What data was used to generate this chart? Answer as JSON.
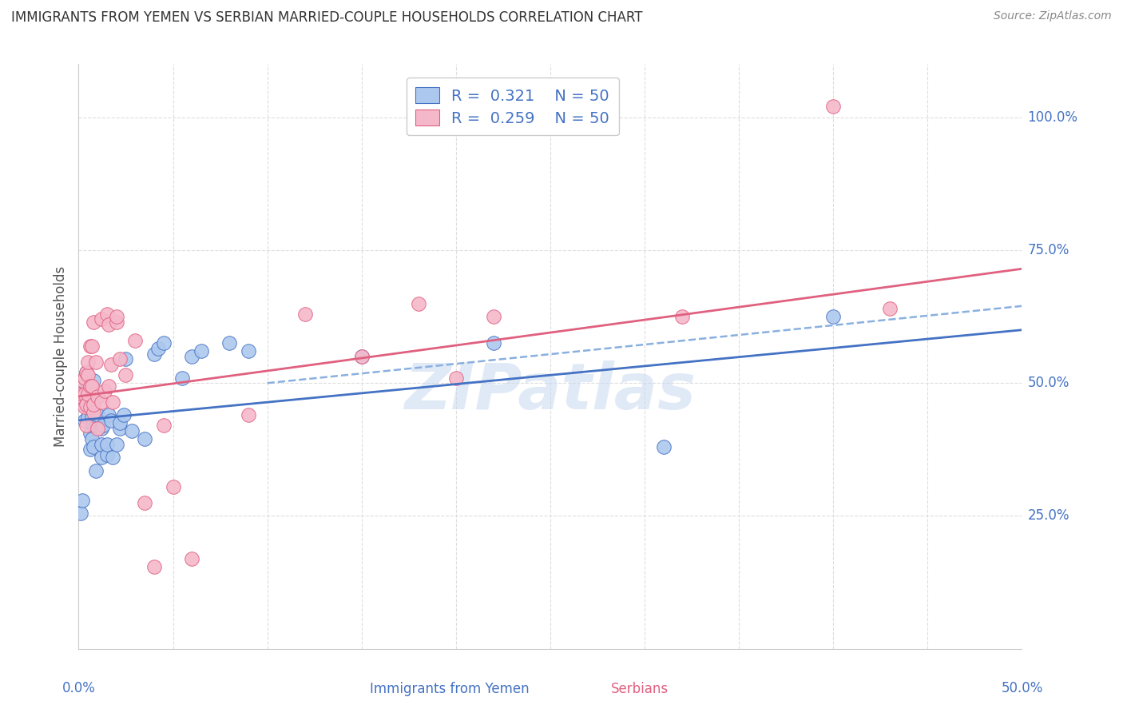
{
  "title": "IMMIGRANTS FROM YEMEN VS SERBIAN MARRIED-COUPLE HOUSEHOLDS CORRELATION CHART",
  "source": "Source: ZipAtlas.com",
  "ylabel": "Married-couple Households",
  "xlabel_blue": "Immigrants from Yemen",
  "xlabel_pink": "Serbians",
  "xlim": [
    0.0,
    0.5
  ],
  "ylim": [
    0.0,
    1.1
  ],
  "xtick_labels_corners": [
    "0.0%",
    "50.0%"
  ],
  "xtick_vals_corners": [
    0.0,
    0.5
  ],
  "ytick_labels": [
    "25.0%",
    "50.0%",
    "75.0%",
    "100.0%"
  ],
  "ytick_vals": [
    0.25,
    0.5,
    0.75,
    1.0
  ],
  "legend_r_blue": "R =  0.321",
  "legend_n_blue": "N = 50",
  "legend_r_pink": "R =  0.259",
  "legend_n_pink": "N = 50",
  "blue_color": "#adc8ee",
  "pink_color": "#f5b8ca",
  "trendline_blue": "#4472c4",
  "trendline_pink": "#e06080",
  "trendline_gray_dashed": "#8ab0e0",
  "watermark": "ZIPatlas",
  "blue_scatter": [
    [
      0.001,
      0.255
    ],
    [
      0.002,
      0.28
    ],
    [
      0.003,
      0.43
    ],
    [
      0.003,
      0.47
    ],
    [
      0.004,
      0.495
    ],
    [
      0.004,
      0.505
    ],
    [
      0.004,
      0.52
    ],
    [
      0.005,
      0.435
    ],
    [
      0.005,
      0.455
    ],
    [
      0.005,
      0.465
    ],
    [
      0.006,
      0.375
    ],
    [
      0.006,
      0.405
    ],
    [
      0.006,
      0.46
    ],
    [
      0.007,
      0.395
    ],
    [
      0.007,
      0.435
    ],
    [
      0.008,
      0.38
    ],
    [
      0.008,
      0.42
    ],
    [
      0.008,
      0.505
    ],
    [
      0.009,
      0.335
    ],
    [
      0.009,
      0.42
    ],
    [
      0.01,
      0.43
    ],
    [
      0.01,
      0.44
    ],
    [
      0.012,
      0.36
    ],
    [
      0.012,
      0.385
    ],
    [
      0.012,
      0.415
    ],
    [
      0.013,
      0.42
    ],
    [
      0.015,
      0.365
    ],
    [
      0.015,
      0.385
    ],
    [
      0.016,
      0.44
    ],
    [
      0.017,
      0.43
    ],
    [
      0.018,
      0.36
    ],
    [
      0.02,
      0.385
    ],
    [
      0.022,
      0.415
    ],
    [
      0.022,
      0.425
    ],
    [
      0.024,
      0.44
    ],
    [
      0.025,
      0.545
    ],
    [
      0.028,
      0.41
    ],
    [
      0.035,
      0.395
    ],
    [
      0.04,
      0.555
    ],
    [
      0.042,
      0.565
    ],
    [
      0.045,
      0.575
    ],
    [
      0.055,
      0.51
    ],
    [
      0.06,
      0.55
    ],
    [
      0.065,
      0.56
    ],
    [
      0.08,
      0.575
    ],
    [
      0.09,
      0.56
    ],
    [
      0.15,
      0.55
    ],
    [
      0.22,
      0.575
    ],
    [
      0.31,
      0.38
    ],
    [
      0.4,
      0.625
    ]
  ],
  "pink_scatter": [
    [
      0.001,
      0.475
    ],
    [
      0.002,
      0.48
    ],
    [
      0.002,
      0.505
    ],
    [
      0.003,
      0.455
    ],
    [
      0.003,
      0.48
    ],
    [
      0.003,
      0.51
    ],
    [
      0.004,
      0.42
    ],
    [
      0.004,
      0.46
    ],
    [
      0.004,
      0.52
    ],
    [
      0.005,
      0.48
    ],
    [
      0.005,
      0.515
    ],
    [
      0.005,
      0.54
    ],
    [
      0.006,
      0.455
    ],
    [
      0.006,
      0.495
    ],
    [
      0.006,
      0.57
    ],
    [
      0.007,
      0.495
    ],
    [
      0.007,
      0.57
    ],
    [
      0.008,
      0.445
    ],
    [
      0.008,
      0.46
    ],
    [
      0.008,
      0.615
    ],
    [
      0.009,
      0.54
    ],
    [
      0.01,
      0.415
    ],
    [
      0.01,
      0.475
    ],
    [
      0.012,
      0.465
    ],
    [
      0.012,
      0.62
    ],
    [
      0.014,
      0.485
    ],
    [
      0.015,
      0.63
    ],
    [
      0.016,
      0.495
    ],
    [
      0.016,
      0.61
    ],
    [
      0.017,
      0.535
    ],
    [
      0.018,
      0.465
    ],
    [
      0.02,
      0.615
    ],
    [
      0.02,
      0.625
    ],
    [
      0.022,
      0.545
    ],
    [
      0.025,
      0.515
    ],
    [
      0.03,
      0.58
    ],
    [
      0.035,
      0.275
    ],
    [
      0.04,
      0.155
    ],
    [
      0.045,
      0.42
    ],
    [
      0.05,
      0.305
    ],
    [
      0.06,
      0.17
    ],
    [
      0.09,
      0.44
    ],
    [
      0.12,
      0.63
    ],
    [
      0.15,
      0.55
    ],
    [
      0.18,
      0.65
    ],
    [
      0.2,
      0.51
    ],
    [
      0.22,
      0.625
    ],
    [
      0.32,
      0.625
    ],
    [
      0.4,
      1.02
    ],
    [
      0.43,
      0.64
    ]
  ],
  "blue_trend_x": [
    0.0,
    0.5
  ],
  "blue_trend_y": [
    0.43,
    0.6
  ],
  "pink_trend_x": [
    0.0,
    0.5
  ],
  "pink_trend_y": [
    0.475,
    0.715
  ],
  "gray_trend_x": [
    0.1,
    0.5
  ],
  "gray_trend_y": [
    0.5,
    0.645
  ]
}
